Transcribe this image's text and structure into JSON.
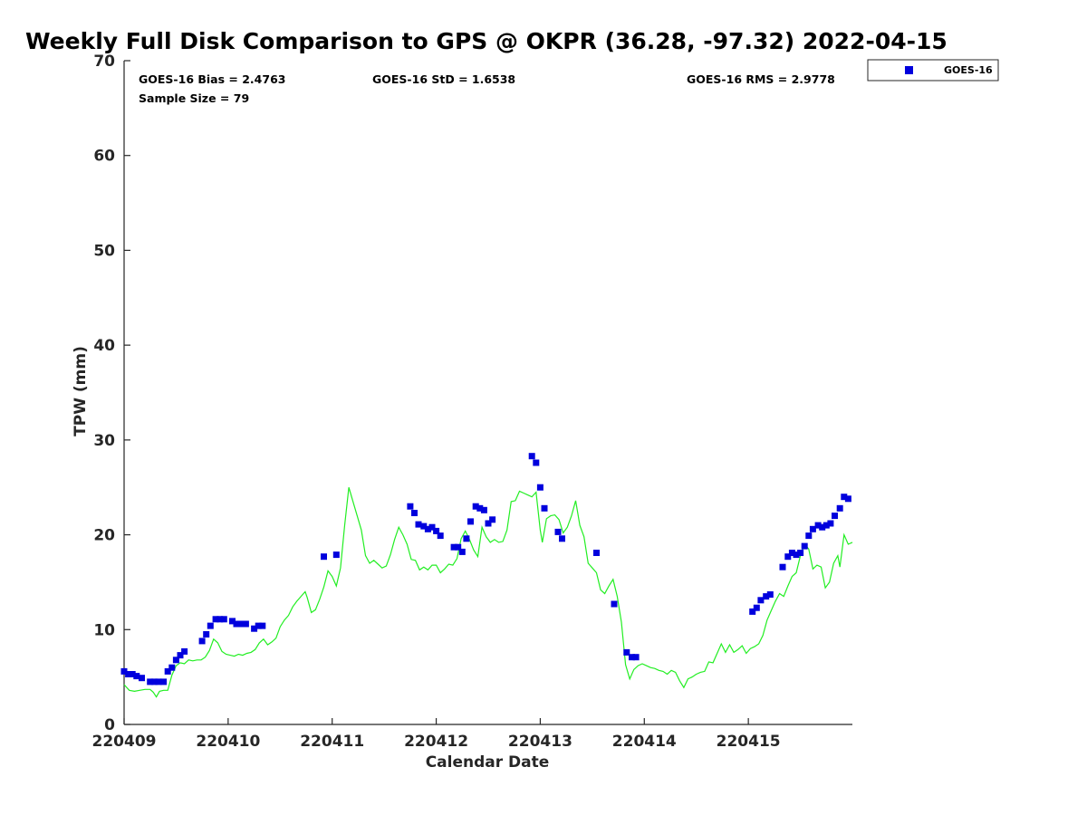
{
  "chart_data": {
    "type": "scatter",
    "title": "Weekly Full Disk Comparison to GPS @ OKPR (36.28, -97.32) 2022-04-15",
    "xlabel": "Calendar Date",
    "ylabel": "TPW (mm)",
    "xlim": [
      220409,
      220416
    ],
    "ylim": [
      0,
      70
    ],
    "x_ticks": [
      "220409",
      "220410",
      "220411",
      "220412",
      "220413",
      "220414",
      "220415"
    ],
    "y_ticks": [
      "0",
      "10",
      "20",
      "30",
      "40",
      "50",
      "60",
      "70"
    ],
    "grid": false,
    "legend_position": "outside-top-right",
    "stats": {
      "bias": "GOES-16 Bias = 2.4763",
      "std": "GOES-16 StD = 1.6538",
      "rms": "GOES-16 RMS = 2.9778",
      "sample": "Sample Size = 79"
    },
    "series": [
      {
        "name": "GOES-16",
        "type": "scatter",
        "marker": "square",
        "color": "#0000dd",
        "legend": true,
        "points": [
          [
            220409.0,
            5.6
          ],
          [
            220409.04,
            5.3
          ],
          [
            220409.08,
            5.3
          ],
          [
            220409.12,
            5.1
          ],
          [
            220409.17,
            4.9
          ],
          [
            220409.25,
            4.5
          ],
          [
            220409.29,
            4.5
          ],
          [
            220409.33,
            4.5
          ],
          [
            220409.38,
            4.5
          ],
          [
            220409.42,
            5.6
          ],
          [
            220409.46,
            6.0
          ],
          [
            220409.5,
            6.8
          ],
          [
            220409.54,
            7.3
          ],
          [
            220409.58,
            7.7
          ],
          [
            220409.75,
            8.8
          ],
          [
            220409.79,
            9.5
          ],
          [
            220409.83,
            10.4
          ],
          [
            220409.88,
            11.1
          ],
          [
            220409.92,
            11.1
          ],
          [
            220409.96,
            11.1
          ],
          [
            220410.04,
            10.9
          ],
          [
            220410.08,
            10.6
          ],
          [
            220410.12,
            10.6
          ],
          [
            220410.17,
            10.6
          ],
          [
            220410.25,
            10.1
          ],
          [
            220410.29,
            10.4
          ],
          [
            220410.33,
            10.4
          ],
          [
            220410.92,
            17.7
          ],
          [
            220411.04,
            17.9
          ],
          [
            220411.75,
            23.0
          ],
          [
            220411.79,
            22.3
          ],
          [
            220411.83,
            21.1
          ],
          [
            220411.88,
            20.9
          ],
          [
            220411.92,
            20.6
          ],
          [
            220411.96,
            20.8
          ],
          [
            220412.0,
            20.4
          ],
          [
            220412.04,
            19.9
          ],
          [
            220412.17,
            18.7
          ],
          [
            220412.21,
            18.7
          ],
          [
            220412.25,
            18.2
          ],
          [
            220412.29,
            19.6
          ],
          [
            220412.33,
            21.4
          ],
          [
            220412.38,
            23.0
          ],
          [
            220412.42,
            22.8
          ],
          [
            220412.46,
            22.6
          ],
          [
            220412.5,
            21.2
          ],
          [
            220412.54,
            21.6
          ],
          [
            220412.92,
            28.3
          ],
          [
            220412.96,
            27.6
          ],
          [
            220413.0,
            25.0
          ],
          [
            220413.04,
            22.8
          ],
          [
            220413.17,
            20.3
          ],
          [
            220413.21,
            19.6
          ],
          [
            220413.54,
            18.1
          ],
          [
            220413.71,
            12.7
          ],
          [
            220413.83,
            7.6
          ],
          [
            220413.88,
            7.1
          ],
          [
            220413.92,
            7.1
          ],
          [
            220415.04,
            11.9
          ],
          [
            220415.08,
            12.3
          ],
          [
            220415.12,
            13.1
          ],
          [
            220415.17,
            13.5
          ],
          [
            220415.21,
            13.7
          ],
          [
            220415.33,
            16.6
          ],
          [
            220415.38,
            17.7
          ],
          [
            220415.42,
            18.1
          ],
          [
            220415.46,
            17.9
          ],
          [
            220415.5,
            18.1
          ],
          [
            220415.54,
            18.8
          ],
          [
            220415.58,
            19.9
          ],
          [
            220415.62,
            20.6
          ],
          [
            220415.67,
            21.0
          ],
          [
            220415.71,
            20.8
          ],
          [
            220415.75,
            21.0
          ],
          [
            220415.79,
            21.2
          ],
          [
            220415.83,
            22.0
          ],
          [
            220415.88,
            22.8
          ],
          [
            220415.92,
            24.0
          ],
          [
            220415.96,
            23.8
          ]
        ]
      },
      {
        "type": "line",
        "color": "#22ee22",
        "legend": false,
        "points": [
          [
            220409.0,
            4.2
          ],
          [
            220409.05,
            3.6
          ],
          [
            220409.1,
            3.5
          ],
          [
            220409.15,
            3.6
          ],
          [
            220409.2,
            3.7
          ],
          [
            220409.25,
            3.7
          ],
          [
            220409.28,
            3.4
          ],
          [
            220409.31,
            2.9
          ],
          [
            220409.34,
            3.5
          ],
          [
            220409.38,
            3.6
          ],
          [
            220409.42,
            3.6
          ],
          [
            220409.46,
            5.2
          ],
          [
            220409.5,
            6.2
          ],
          [
            220409.54,
            6.5
          ],
          [
            220409.58,
            6.4
          ],
          [
            220409.62,
            6.8
          ],
          [
            220409.66,
            6.7
          ],
          [
            220409.7,
            6.8
          ],
          [
            220409.74,
            6.8
          ],
          [
            220409.78,
            7.1
          ],
          [
            220409.82,
            7.8
          ],
          [
            220409.86,
            9.0
          ],
          [
            220409.9,
            8.6
          ],
          [
            220409.94,
            7.7
          ],
          [
            220409.98,
            7.4
          ],
          [
            220410.02,
            7.3
          ],
          [
            220410.06,
            7.2
          ],
          [
            220410.1,
            7.4
          ],
          [
            220410.14,
            7.3
          ],
          [
            220410.18,
            7.5
          ],
          [
            220410.22,
            7.6
          ],
          [
            220410.26,
            7.9
          ],
          [
            220410.3,
            8.6
          ],
          [
            220410.34,
            9.0
          ],
          [
            220410.38,
            8.4
          ],
          [
            220410.42,
            8.7
          ],
          [
            220410.46,
            9.1
          ],
          [
            220410.5,
            10.3
          ],
          [
            220410.54,
            11.0
          ],
          [
            220410.58,
            11.5
          ],
          [
            220410.62,
            12.4
          ],
          [
            220410.66,
            13.0
          ],
          [
            220410.7,
            13.5
          ],
          [
            220410.74,
            14.0
          ],
          [
            220410.76,
            13.4
          ],
          [
            220410.8,
            11.8
          ],
          [
            220410.84,
            12.1
          ],
          [
            220410.88,
            13.2
          ],
          [
            220410.92,
            14.5
          ],
          [
            220410.96,
            16.2
          ],
          [
            220411.0,
            15.6
          ],
          [
            220411.04,
            14.6
          ],
          [
            220411.08,
            16.5
          ],
          [
            220411.12,
            21.0
          ],
          [
            220411.16,
            25.0
          ],
          [
            220411.2,
            23.5
          ],
          [
            220411.24,
            22.0
          ],
          [
            220411.28,
            20.5
          ],
          [
            220411.32,
            17.8
          ],
          [
            220411.36,
            17.0
          ],
          [
            220411.4,
            17.3
          ],
          [
            220411.44,
            16.9
          ],
          [
            220411.48,
            16.5
          ],
          [
            220411.52,
            16.7
          ],
          [
            220411.56,
            17.9
          ],
          [
            220411.6,
            19.5
          ],
          [
            220411.64,
            20.8
          ],
          [
            220411.68,
            20.0
          ],
          [
            220411.72,
            19.0
          ],
          [
            220411.76,
            17.4
          ],
          [
            220411.8,
            17.3
          ],
          [
            220411.84,
            16.3
          ],
          [
            220411.88,
            16.6
          ],
          [
            220411.92,
            16.3
          ],
          [
            220411.96,
            16.8
          ],
          [
            220412.0,
            16.8
          ],
          [
            220412.04,
            16.0
          ],
          [
            220412.08,
            16.4
          ],
          [
            220412.12,
            16.9
          ],
          [
            220412.16,
            16.8
          ],
          [
            220412.2,
            17.5
          ],
          [
            220412.24,
            19.6
          ],
          [
            220412.28,
            20.4
          ],
          [
            220412.32,
            19.5
          ],
          [
            220412.36,
            18.4
          ],
          [
            220412.4,
            17.7
          ],
          [
            220412.44,
            20.8
          ],
          [
            220412.48,
            19.8
          ],
          [
            220412.52,
            19.2
          ],
          [
            220412.56,
            19.5
          ],
          [
            220412.6,
            19.2
          ],
          [
            220412.64,
            19.3
          ],
          [
            220412.68,
            20.5
          ],
          [
            220412.72,
            23.5
          ],
          [
            220412.76,
            23.6
          ],
          [
            220412.8,
            24.6
          ],
          [
            220412.84,
            24.4
          ],
          [
            220412.88,
            24.2
          ],
          [
            220412.92,
            24.0
          ],
          [
            220412.96,
            24.5
          ],
          [
            220413.0,
            20.5
          ],
          [
            220413.02,
            19.2
          ],
          [
            220413.06,
            21.7
          ],
          [
            220413.1,
            22.0
          ],
          [
            220413.14,
            22.1
          ],
          [
            220413.18,
            21.6
          ],
          [
            220413.22,
            20.2
          ],
          [
            220413.26,
            20.8
          ],
          [
            220413.3,
            22.0
          ],
          [
            220413.34,
            23.6
          ],
          [
            220413.38,
            21.0
          ],
          [
            220413.42,
            19.8
          ],
          [
            220413.46,
            17.0
          ],
          [
            220413.5,
            16.5
          ],
          [
            220413.54,
            16.0
          ],
          [
            220413.58,
            14.2
          ],
          [
            220413.62,
            13.8
          ],
          [
            220413.66,
            14.6
          ],
          [
            220413.7,
            15.3
          ],
          [
            220413.74,
            13.5
          ],
          [
            220413.78,
            10.8
          ],
          [
            220413.82,
            6.3
          ],
          [
            220413.86,
            4.8
          ],
          [
            220413.9,
            5.8
          ],
          [
            220413.94,
            6.2
          ],
          [
            220413.98,
            6.4
          ],
          [
            220414.02,
            6.2
          ],
          [
            220414.06,
            6.0
          ],
          [
            220414.1,
            5.9
          ],
          [
            220414.14,
            5.7
          ],
          [
            220414.18,
            5.6
          ],
          [
            220414.22,
            5.3
          ],
          [
            220414.26,
            5.7
          ],
          [
            220414.3,
            5.5
          ],
          [
            220414.34,
            4.6
          ],
          [
            220414.38,
            3.9
          ],
          [
            220414.42,
            4.8
          ],
          [
            220414.46,
            5.0
          ],
          [
            220414.5,
            5.3
          ],
          [
            220414.54,
            5.5
          ],
          [
            220414.58,
            5.6
          ],
          [
            220414.62,
            6.6
          ],
          [
            220414.66,
            6.5
          ],
          [
            220414.7,
            7.5
          ],
          [
            220414.74,
            8.5
          ],
          [
            220414.78,
            7.6
          ],
          [
            220414.82,
            8.4
          ],
          [
            220414.86,
            7.6
          ],
          [
            220414.9,
            7.9
          ],
          [
            220414.94,
            8.3
          ],
          [
            220414.98,
            7.5
          ],
          [
            220415.02,
            8.0
          ],
          [
            220415.06,
            8.2
          ],
          [
            220415.1,
            8.5
          ],
          [
            220415.14,
            9.4
          ],
          [
            220415.18,
            11.0
          ],
          [
            220415.22,
            12.0
          ],
          [
            220415.26,
            13.0
          ],
          [
            220415.3,
            13.8
          ],
          [
            220415.34,
            13.5
          ],
          [
            220415.38,
            14.6
          ],
          [
            220415.42,
            15.6
          ],
          [
            220415.46,
            16.0
          ],
          [
            220415.5,
            17.8
          ],
          [
            220415.54,
            19.0
          ],
          [
            220415.58,
            18.5
          ],
          [
            220415.62,
            16.4
          ],
          [
            220415.66,
            16.8
          ],
          [
            220415.7,
            16.6
          ],
          [
            220415.74,
            14.4
          ],
          [
            220415.78,
            15.0
          ],
          [
            220415.82,
            17.0
          ],
          [
            220415.86,
            17.8
          ],
          [
            220415.88,
            16.6
          ],
          [
            220415.92,
            20.0
          ],
          [
            220415.96,
            19.0
          ],
          [
            220416.0,
            19.2
          ]
        ]
      }
    ]
  }
}
